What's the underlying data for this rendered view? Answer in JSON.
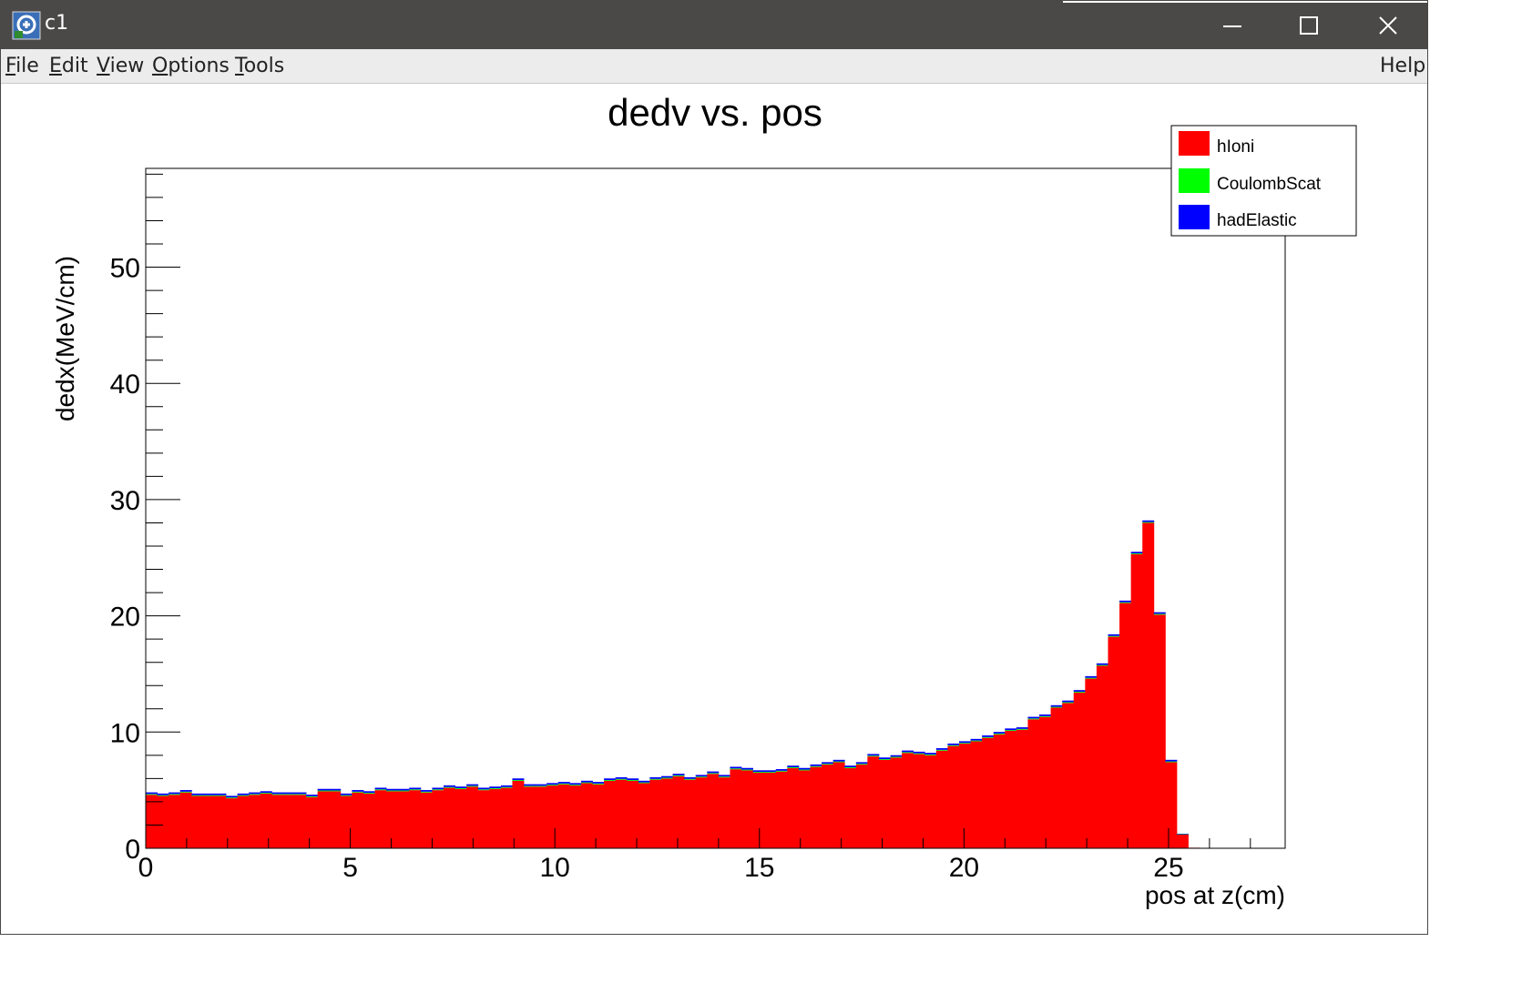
{
  "window": {
    "title": "c1",
    "titlebar_color": "#4b4948",
    "icons": {
      "app": "root-canvas-icon",
      "minimize": "minimize-icon",
      "maximize": "maximize-icon",
      "close": "close-icon"
    }
  },
  "menubar": {
    "items": [
      {
        "label": "File",
        "accel": "F",
        "rest": "ile"
      },
      {
        "label": "Edit",
        "accel": "E",
        "rest": "dit"
      },
      {
        "label": "View",
        "accel": "V",
        "rest": "iew"
      },
      {
        "label": "Options",
        "accel": "O",
        "rest": "ptions"
      },
      {
        "label": "Tools",
        "accel": "T",
        "rest": "ools"
      }
    ],
    "help": "Help"
  },
  "chart_data": {
    "type": "bar",
    "title": "dedv vs. pos",
    "xlabel": "pos at z(cm)",
    "ylabel": "dedx(MeV/cm)",
    "xlim": [
      0,
      27.85
    ],
    "ylim": [
      0,
      58.5
    ],
    "x_ticks": [
      "0",
      "5",
      "10",
      "15",
      "20",
      "25"
    ],
    "y_ticks": [
      "0",
      "10",
      "20",
      "30",
      "40",
      "50"
    ],
    "bin_width": 0.28,
    "stacked": true,
    "grid": false,
    "legend_position": "top-right",
    "legend": [
      "hIoni",
      "CoulombScat",
      "hadElastic"
    ],
    "colors": {
      "hIoni": "#ff0000",
      "CoulombScat": "#00ff00",
      "hadElastic": "#0000ff"
    },
    "series": [
      {
        "name": "hIoni",
        "values": [
          4.6,
          4.5,
          4.6,
          4.8,
          4.5,
          4.5,
          4.5,
          4.3,
          4.5,
          4.6,
          4.7,
          4.6,
          4.6,
          4.6,
          4.4,
          4.9,
          4.9,
          4.5,
          4.8,
          4.7,
          5.0,
          4.9,
          4.9,
          5.0,
          4.8,
          5.0,
          5.2,
          5.1,
          5.3,
          5.0,
          5.1,
          5.2,
          5.8,
          5.3,
          5.3,
          5.4,
          5.5,
          5.4,
          5.6,
          5.5,
          5.8,
          5.9,
          5.8,
          5.6,
          5.9,
          6.0,
          6.2,
          5.9,
          6.1,
          6.4,
          6.1,
          6.8,
          6.7,
          6.5,
          6.5,
          6.6,
          6.9,
          6.7,
          7.0,
          7.2,
          7.4,
          6.9,
          7.2,
          7.9,
          7.6,
          7.8,
          8.2,
          8.1,
          8.0,
          8.4,
          8.8,
          9.0,
          9.2,
          9.5,
          9.8,
          10.1,
          10.2,
          11.1,
          11.3,
          12.1,
          12.5,
          13.4,
          14.6,
          15.7,
          18.2,
          21.1,
          25.3,
          28.0,
          20.1,
          7.4,
          1.2,
          0.05
        ]
      },
      {
        "name": "CoulombScat",
        "values": [
          0.07,
          0.07,
          0.07,
          0.07,
          0.07,
          0.07,
          0.07,
          0.07,
          0.07,
          0.07,
          0.07,
          0.07,
          0.07,
          0.07,
          0.07,
          0.07,
          0.07,
          0.07,
          0.07,
          0.07,
          0.07,
          0.07,
          0.07,
          0.07,
          0.07,
          0.07,
          0.07,
          0.07,
          0.07,
          0.07,
          0.07,
          0.07,
          0.07,
          0.07,
          0.07,
          0.07,
          0.07,
          0.07,
          0.07,
          0.07,
          0.07,
          0.07,
          0.07,
          0.07,
          0.07,
          0.07,
          0.07,
          0.07,
          0.07,
          0.07,
          0.07,
          0.07,
          0.07,
          0.07,
          0.07,
          0.07,
          0.07,
          0.07,
          0.07,
          0.07,
          0.07,
          0.07,
          0.07,
          0.07,
          0.07,
          0.07,
          0.07,
          0.07,
          0.07,
          0.07,
          0.07,
          0.07,
          0.07,
          0.07,
          0.07,
          0.07,
          0.07,
          0.07,
          0.07,
          0.07,
          0.07,
          0.07,
          0.07,
          0.07,
          0.07,
          0.07,
          0.07,
          0.07,
          0.07,
          0.07,
          0.02,
          0.0
        ]
      },
      {
        "name": "hadElastic",
        "values": [
          0.14,
          0.14,
          0.14,
          0.14,
          0.14,
          0.14,
          0.14,
          0.14,
          0.14,
          0.14,
          0.14,
          0.14,
          0.14,
          0.14,
          0.14,
          0.14,
          0.14,
          0.14,
          0.14,
          0.14,
          0.14,
          0.14,
          0.14,
          0.14,
          0.14,
          0.14,
          0.14,
          0.14,
          0.14,
          0.14,
          0.14,
          0.14,
          0.14,
          0.14,
          0.14,
          0.14,
          0.14,
          0.14,
          0.14,
          0.14,
          0.14,
          0.14,
          0.14,
          0.14,
          0.14,
          0.14,
          0.14,
          0.14,
          0.14,
          0.14,
          0.14,
          0.14,
          0.14,
          0.14,
          0.14,
          0.14,
          0.14,
          0.14,
          0.14,
          0.14,
          0.14,
          0.14,
          0.14,
          0.14,
          0.14,
          0.14,
          0.14,
          0.14,
          0.14,
          0.14,
          0.14,
          0.14,
          0.14,
          0.14,
          0.14,
          0.14,
          0.14,
          0.14,
          0.14,
          0.14,
          0.14,
          0.14,
          0.14,
          0.14,
          0.14,
          0.14,
          0.14,
          0.14,
          0.14,
          0.14,
          0.03,
          0.0
        ]
      }
    ]
  }
}
